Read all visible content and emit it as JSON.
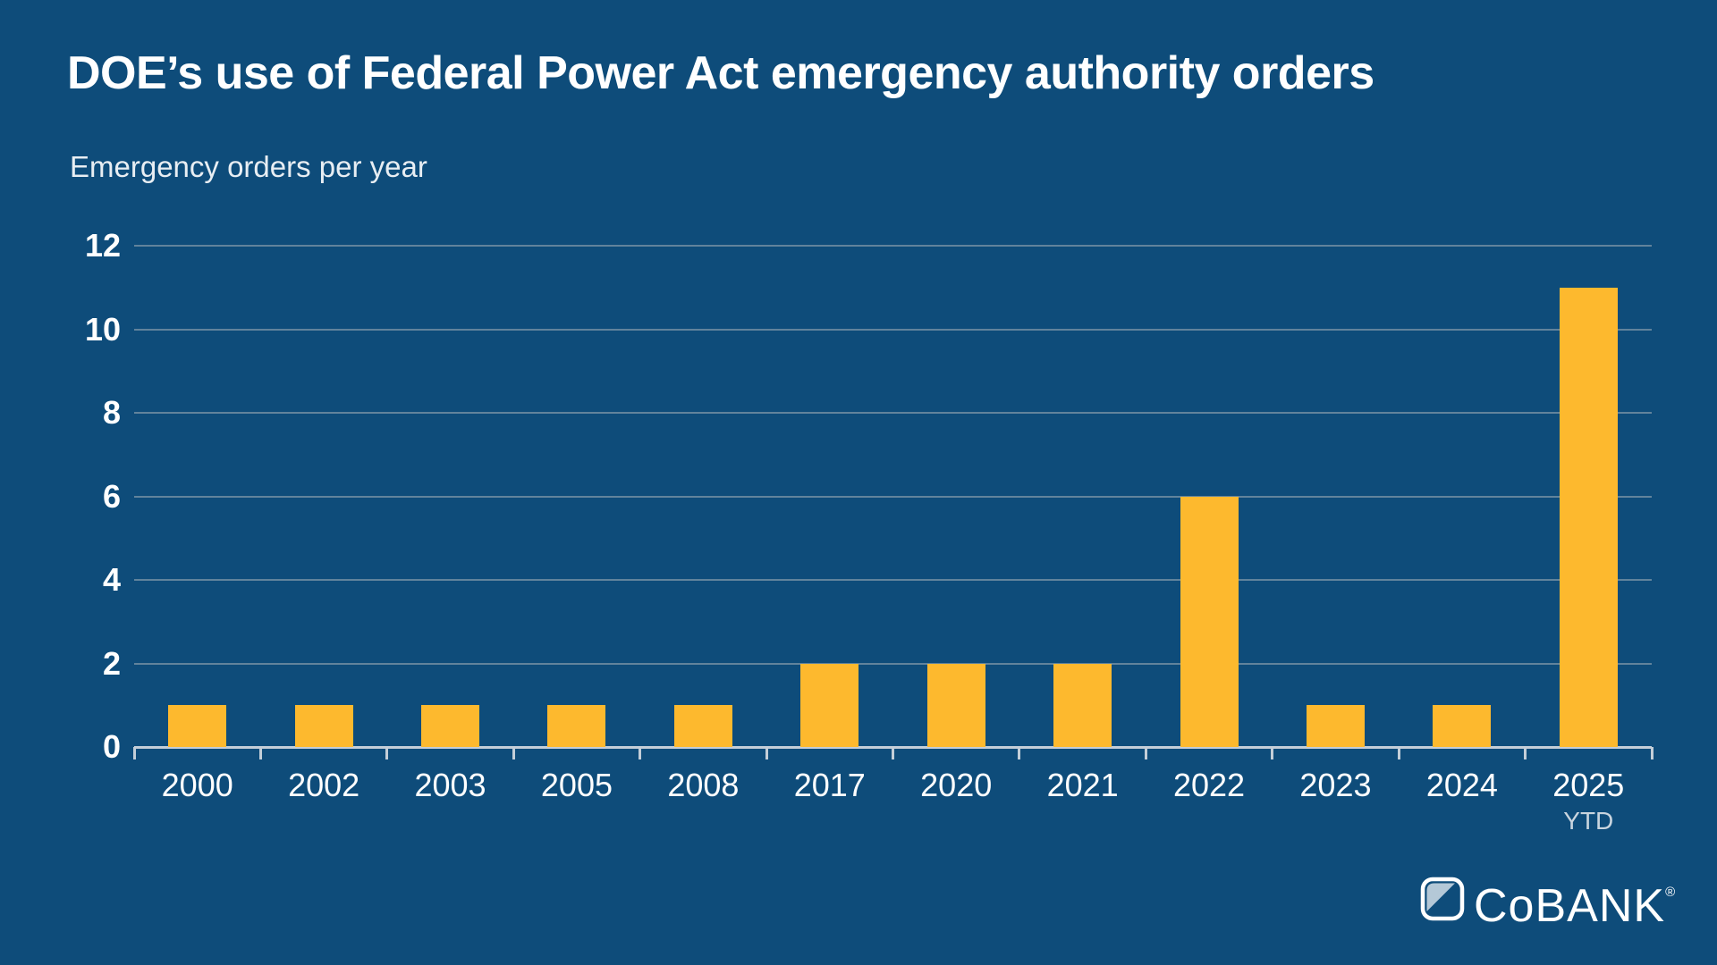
{
  "title": "DOE’s use of Federal Power Act emergency authority orders",
  "subtitle": "Emergency orders per year",
  "chart_data": {
    "type": "bar",
    "title": "DOE’s use of Federal Power Act emergency authority orders",
    "axis_caption": "Emergency orders per year",
    "categories": [
      "2000",
      "2002",
      "2003",
      "2005",
      "2008",
      "2017",
      "2020",
      "2021",
      "2022",
      "2023",
      "2024",
      "2025"
    ],
    "last_category_note": "YTD",
    "values": [
      1,
      1,
      1,
      1,
      1,
      2,
      2,
      2,
      6,
      1,
      1,
      11
    ],
    "ylim": [
      0,
      12
    ],
    "yticks": [
      0,
      2,
      4,
      6,
      8,
      10,
      12
    ],
    "grid": "horizontal",
    "legend": "none",
    "colors": {
      "background": "#0E4C7A",
      "bar": "#FDB92E",
      "gridline": "#7E95A8",
      "axis": "#C3CED8",
      "text": "#FFFFFF"
    }
  },
  "logo": {
    "wordmark": "CoBANK",
    "registered_mark": "®",
    "icon": "cobank-rounded-square-icon"
  }
}
